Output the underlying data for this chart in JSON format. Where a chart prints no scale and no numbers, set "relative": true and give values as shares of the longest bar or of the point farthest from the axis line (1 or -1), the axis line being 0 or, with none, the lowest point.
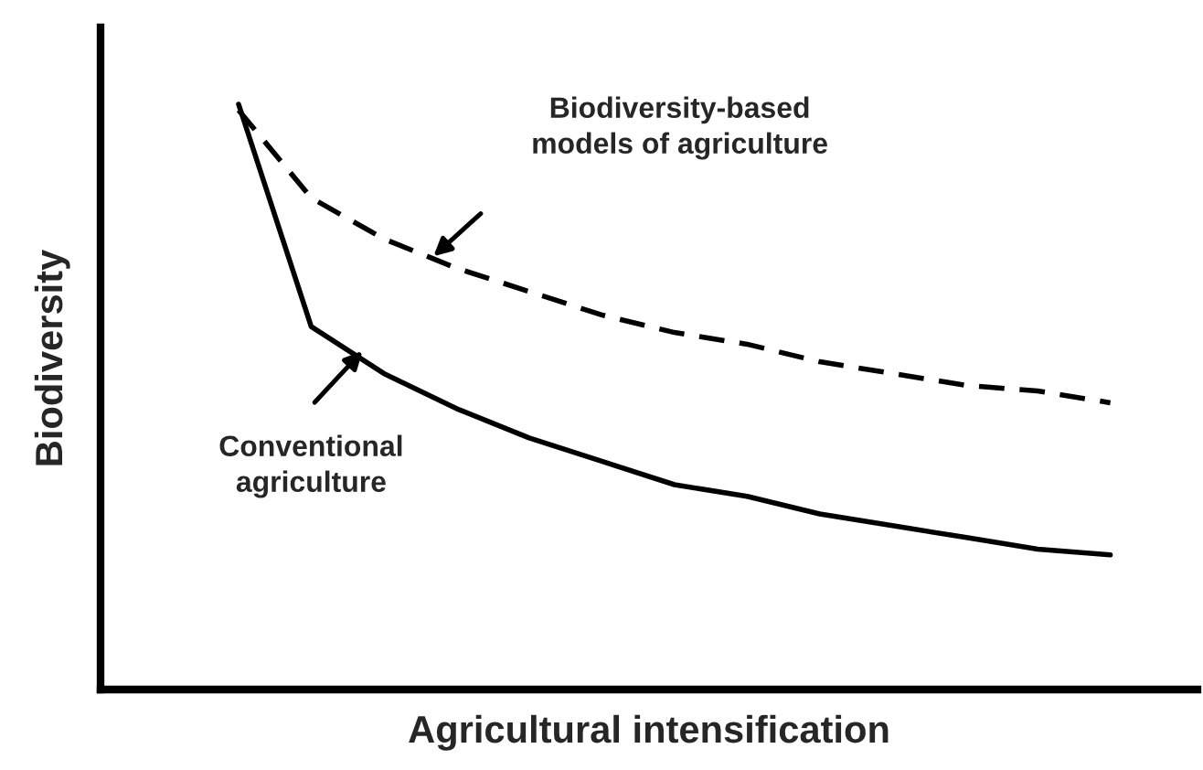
{
  "chart_data": {
    "type": "line",
    "relative": true,
    "xlabel": "Agricultural intensification",
    "ylabel": "Biodiversity",
    "categories": [
      null,
      null,
      null,
      null,
      null,
      null,
      null,
      null,
      null,
      null,
      null,
      null,
      null
    ],
    "series": [
      {
        "color": "#000000",
        "line_style": "dashed",
        "values": [
          0.99,
          0.84,
          0.77,
          0.72,
          0.68,
          0.64,
          0.61,
          0.59,
          0.56,
          0.54,
          0.52,
          0.51,
          0.49
        ]
      },
      {
        "color": "#000000",
        "line_style": "solid",
        "values": [
          1,
          0.62,
          0.54,
          0.48,
          0.43,
          0.39,
          0.35,
          0.33,
          0.3,
          0.28,
          0.26,
          0.24,
          0.23
        ]
      }
    ],
    "annotations": [
      "Biodiversity-based\nmodels of agriculture",
      "Conventional\nagriculture"
    ],
    "legend": false,
    "marker": "none"
  }
}
